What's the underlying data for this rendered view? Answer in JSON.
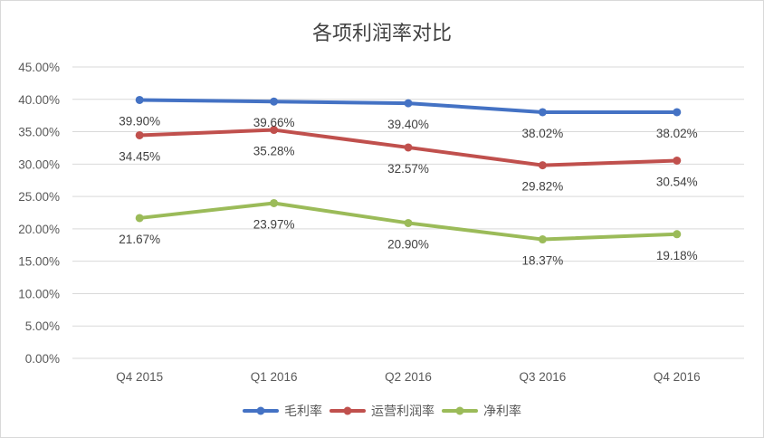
{
  "chart_data": {
    "type": "line",
    "title": "各项利润率对比",
    "categories": [
      "Q4 2015",
      "Q1 2016",
      "Q2 2016",
      "Q3 2016",
      "Q4 2016"
    ],
    "ylim": [
      0,
      45
    ],
    "yticks": [
      "0.00%",
      "5.00%",
      "10.00%",
      "15.00%",
      "20.00%",
      "25.00%",
      "30.00%",
      "35.00%",
      "40.00%",
      "45.00%"
    ],
    "grid": true,
    "legend_position": "bottom",
    "series": [
      {
        "name": "毛利率",
        "color": "#4472C4",
        "values": [
          39.9,
          39.66,
          39.4,
          38.02,
          38.02
        ],
        "labels": [
          "39.90%",
          "39.66%",
          "39.40%",
          "38.02%",
          "38.02%"
        ]
      },
      {
        "name": "运营利润率",
        "color": "#C0504D",
        "values": [
          34.45,
          35.28,
          32.57,
          29.82,
          30.54
        ],
        "labels": [
          "34.45%",
          "35.28%",
          "32.57%",
          "29.82%",
          "30.54%"
        ]
      },
      {
        "name": "净利率",
        "color": "#9BBB59",
        "values": [
          21.67,
          23.97,
          20.9,
          18.37,
          19.18
        ],
        "labels": [
          "21.67%",
          "23.97%",
          "20.90%",
          "18.37%",
          "19.18%"
        ]
      }
    ]
  }
}
